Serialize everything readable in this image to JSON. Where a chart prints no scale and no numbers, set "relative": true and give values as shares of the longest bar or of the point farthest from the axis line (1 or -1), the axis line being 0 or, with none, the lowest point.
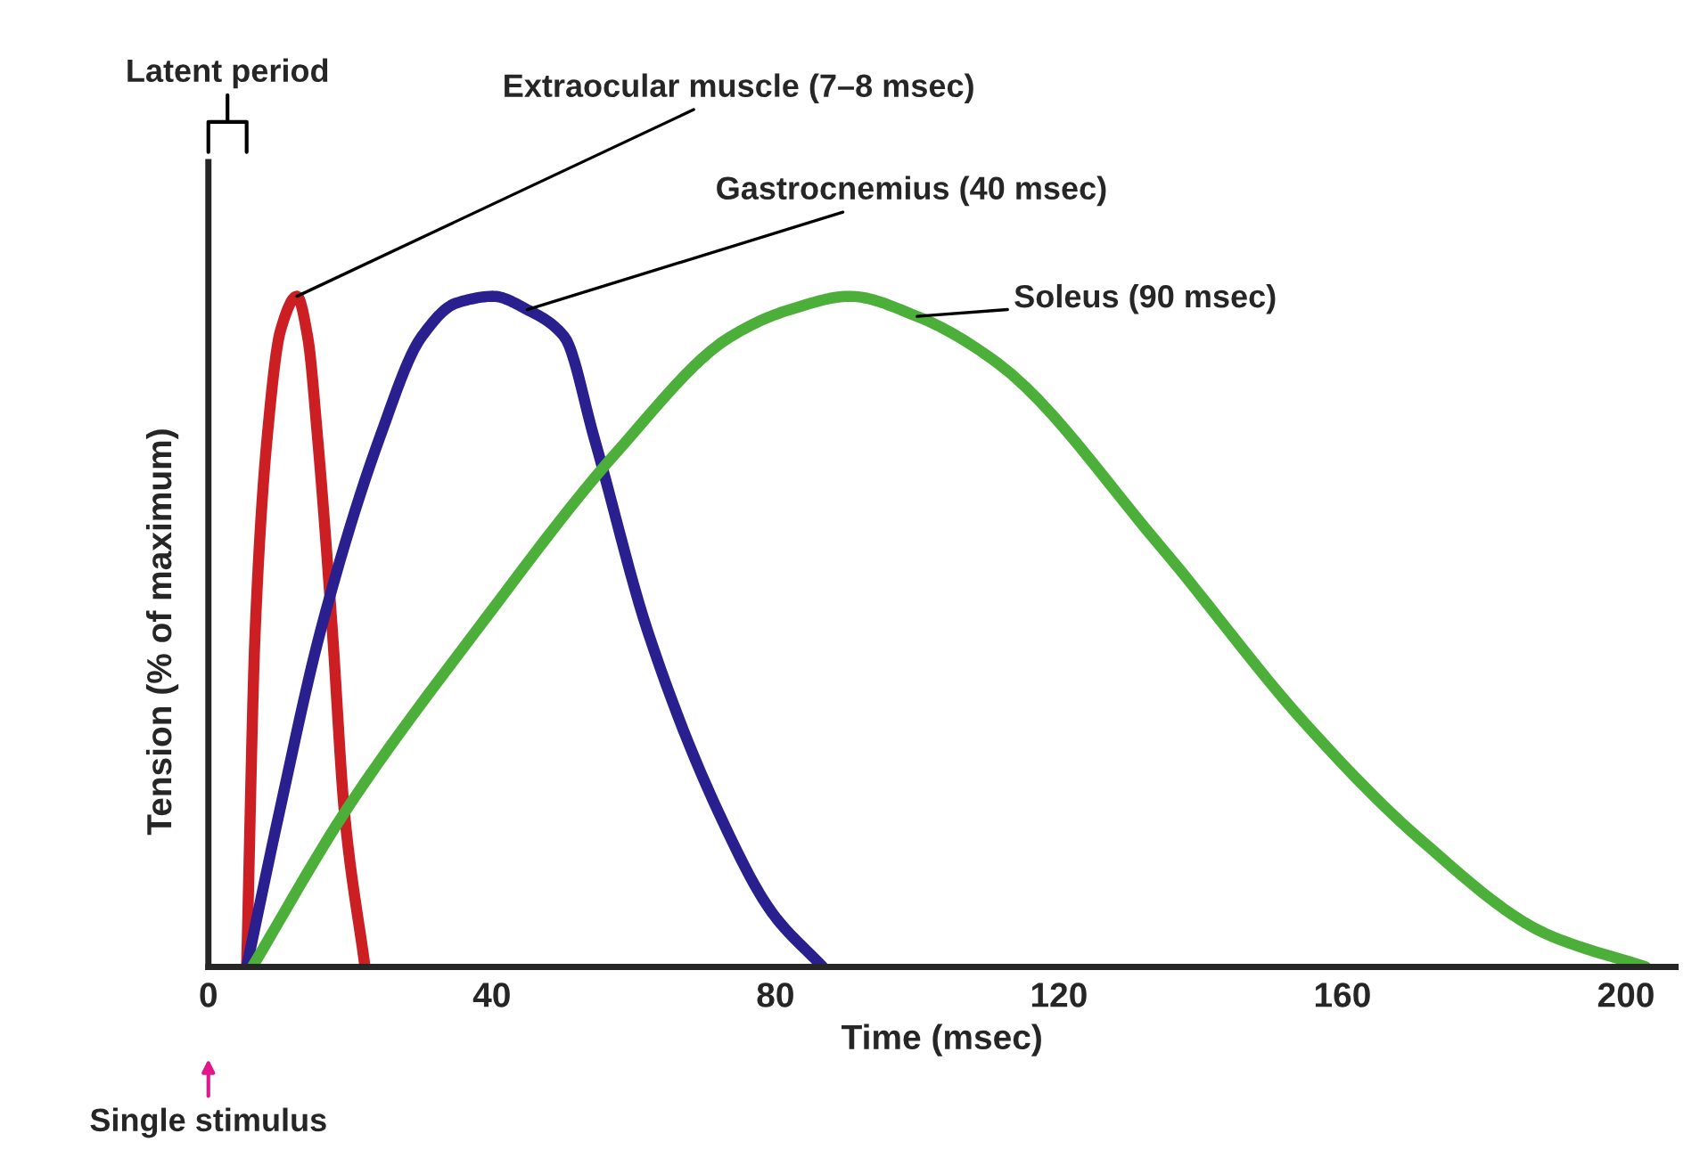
{
  "chart_data": {
    "type": "line",
    "relative": true,
    "xlabel": "Time (msec)",
    "ylabel": "Tension (% of maximum)",
    "xlim": [
      0,
      207
    ],
    "xticks": [
      0,
      40,
      80,
      120,
      160,
      200
    ],
    "grid": false,
    "legend": false,
    "marker": "none",
    "line_style": "solid",
    "annotations": [
      "Latent period",
      "Single stimulus"
    ],
    "series": [
      {
        "name": "Extraocular muscle (7–8 msec)",
        "color": "#cc1f24",
        "x": [
          5.4,
          6.6,
          8.3,
          10.2,
          12.5,
          14.0,
          15.4,
          17.5,
          19.2,
          22.1
        ],
        "values": [
          0,
          0.5,
          0.79,
          0.95,
          1,
          0.94,
          0.79,
          0.5,
          0.23,
          0
        ]
      },
      {
        "name": "Gastrocnemius (40 msec)",
        "color": "#2a1f8f",
        "x": [
          5.4,
          10.0,
          15.8,
          24.2,
          30.1,
          35.0,
          40.2,
          45.0,
          50.2,
          54.4,
          62.0,
          72.0,
          79.6,
          86.7
        ],
        "values": [
          0,
          0.23,
          0.5,
          0.79,
          0.94,
          0.99,
          1,
          0.98,
          0.94,
          0.79,
          0.5,
          0.23,
          0.08,
          0
        ]
      },
      {
        "name": "Soleus (90 msec)",
        "color": "#4caf3a",
        "x": [
          6.2,
          19.2,
          37.7,
          57.8,
          73.7,
          82.0,
          90.5,
          100.0,
          111.4,
          134.1,
          155.0,
          171.0,
          188.6,
          202.8
        ],
        "values": [
          0,
          0.23,
          0.5,
          0.77,
          0.94,
          0.98,
          1,
          0.97,
          0.9,
          0.63,
          0.36,
          0.19,
          0.05,
          0
        ]
      }
    ]
  }
}
